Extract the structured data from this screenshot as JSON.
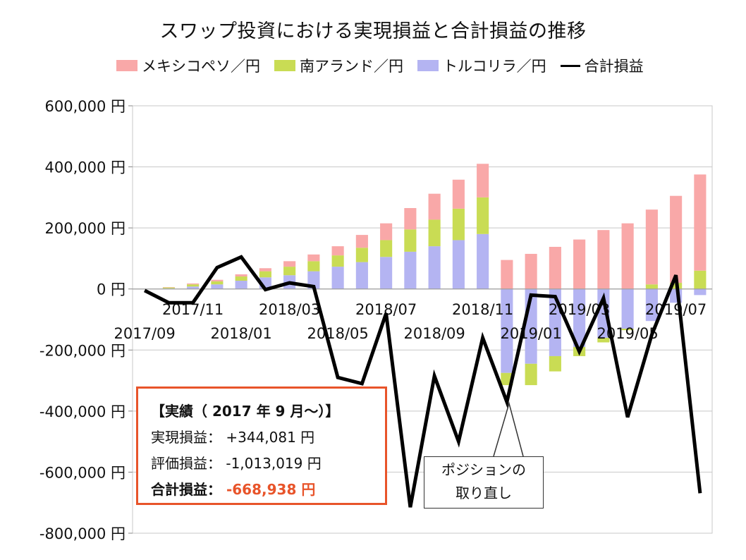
{
  "chart_data": {
    "type": "bar",
    "title": "スワップ投資における実現損益と合計損益の推移",
    "unit": "円",
    "ylim": [
      -800000,
      600000
    ],
    "yticks": [
      600000,
      400000,
      200000,
      0,
      -200000,
      -400000,
      -600000,
      -800000
    ],
    "ytick_labels": [
      "600,000 円",
      "400,000 円",
      "200,000 円",
      "0 円",
      "-200,000 円",
      "-400,000 円",
      "-600,000 円",
      "-800,000 円"
    ],
    "categories": [
      "2017/09",
      "2017/10",
      "2017/11",
      "2017/12",
      "2018/01",
      "2018/02",
      "2018/03",
      "2018/04",
      "2018/05",
      "2018/06",
      "2018/07",
      "2018/08",
      "2018/09",
      "2018/10",
      "2018/11",
      "2018/12",
      "2019/01",
      "2019/02",
      "2019/03",
      "2019/04",
      "2019/05",
      "2019/06",
      "2019/07",
      "2019/08"
    ],
    "xtick_labels": [
      {
        "index": 0,
        "label": "2017/09",
        "row": 2
      },
      {
        "index": 2,
        "label": "2017/11",
        "row": 1
      },
      {
        "index": 4,
        "label": "2018/01",
        "row": 2
      },
      {
        "index": 6,
        "label": "2018/03",
        "row": 1
      },
      {
        "index": 8,
        "label": "2018/05",
        "row": 2
      },
      {
        "index": 10,
        "label": "2018/07",
        "row": 1
      },
      {
        "index": 12,
        "label": "2018/09",
        "row": 2
      },
      {
        "index": 14,
        "label": "2018/11",
        "row": 1
      },
      {
        "index": 16,
        "label": "2019/01",
        "row": 2
      },
      {
        "index": 18,
        "label": "2019/03",
        "row": 1
      },
      {
        "index": 20,
        "label": "2019/05",
        "row": 2
      },
      {
        "index": 22,
        "label": "2019/07",
        "row": 1
      }
    ],
    "series": [
      {
        "name": "トルコリラ／円",
        "color": "#b4b4f2",
        "values": [
          0,
          2000,
          8000,
          15000,
          27000,
          38000,
          45000,
          58000,
          73000,
          88000,
          105000,
          122000,
          140000,
          160000,
          180000,
          -275000,
          -245000,
          -220000,
          -190000,
          -160000,
          -130000,
          -105000,
          -45000,
          -20000
        ]
      },
      {
        "name": "南アランド／円",
        "color": "#c9dc54",
        "values": [
          0,
          3000,
          7000,
          10000,
          14000,
          20000,
          28000,
          33000,
          37000,
          47000,
          55000,
          73000,
          87000,
          103000,
          120000,
          -40000,
          -70000,
          -50000,
          -30000,
          -15000,
          -5000,
          15000,
          20000,
          60000
        ]
      },
      {
        "name": "メキシコペソ／円",
        "color": "#f9a8a8",
        "values": [
          0,
          1000,
          3000,
          5000,
          7000,
          10000,
          18000,
          22000,
          30000,
          42000,
          55000,
          70000,
          85000,
          95000,
          110000,
          95000,
          115000,
          138000,
          162000,
          193000,
          215000,
          245000,
          285000,
          315000
        ]
      }
    ],
    "line": {
      "name": "合計損益",
      "color": "#000000",
      "values": [
        -5000,
        -45000,
        -45000,
        70000,
        105000,
        -2000,
        20000,
        8000,
        -290000,
        -310000,
        -80000,
        -715000,
        -285000,
        -500000,
        -160000,
        -370000,
        -20000,
        -25000,
        -205000,
        -30000,
        -420000,
        -150000,
        45000,
        -668938
      ]
    }
  },
  "legend": {
    "mxn": "メキシコペソ／円",
    "zar": "南アランド／円",
    "try": "トルコリラ／円",
    "total": "合計損益"
  },
  "summary": {
    "header": "【実績（ 2017 年 9 月～）】",
    "realized_label": "実現損益：",
    "realized_value": "+344,081 円",
    "unrealized_label": "評価損益：",
    "unrealized_value": "-1,013,019 円",
    "total_label": "合計損益：",
    "total_value": "-668,938 円"
  },
  "annotation": {
    "line1": "ポジションの",
    "line2": "取り直し"
  },
  "colors": {
    "mxn": "#f9a8a8",
    "zar": "#c9dc54",
    "try": "#b4b4f2",
    "accent": "#e8542a"
  }
}
